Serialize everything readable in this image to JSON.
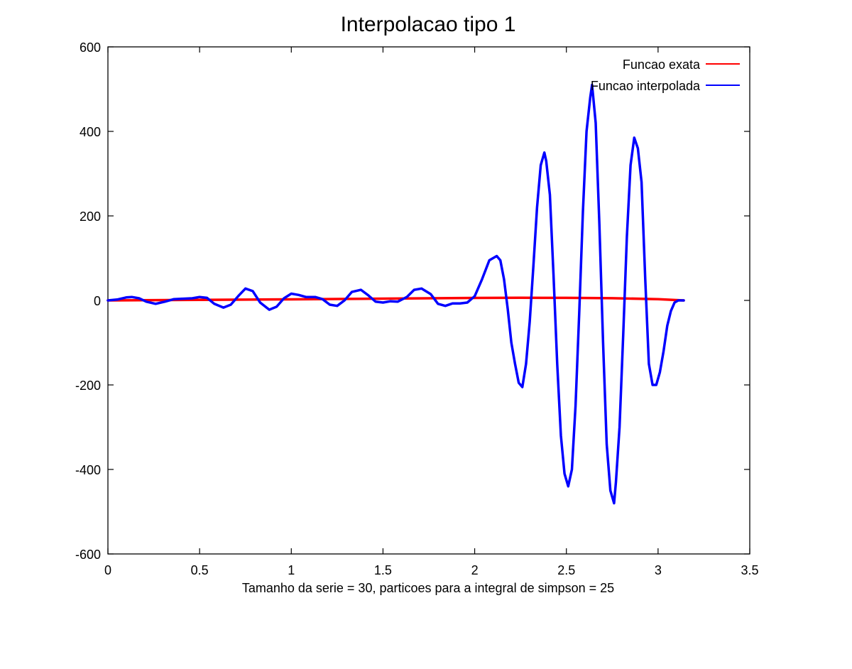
{
  "chart_data": {
    "type": "line",
    "title": "Interpolacao tipo 1",
    "xlabel": "Tamanho da serie = 30, particoes para a integral de simpson = 25",
    "ylabel": "",
    "xlim": [
      0,
      3.5
    ],
    "ylim": [
      -600,
      600
    ],
    "xticks": [
      0,
      0.5,
      1,
      1.5,
      2,
      2.5,
      3,
      3.5
    ],
    "xtick_labels": [
      "0",
      "0.5",
      "1",
      "1.5",
      "2",
      "2.5",
      "3",
      "3.5"
    ],
    "yticks": [
      600,
      400,
      200,
      0,
      -200,
      -400,
      -600
    ],
    "ytick_labels": [
      "600",
      "400",
      "200",
      "0",
      "-200",
      "-400",
      "-600"
    ],
    "grid": false,
    "legend_position": "top-right",
    "series": [
      {
        "name": "Funcao exata",
        "color": "#ff0000",
        "x": [
          0,
          0.25,
          0.5,
          0.75,
          1.0,
          1.25,
          1.5,
          1.75,
          2.0,
          2.25,
          2.5,
          2.75,
          3.0,
          3.14
        ],
        "y": [
          0,
          0.6,
          1.2,
          1.9,
          2.6,
          3.3,
          4.2,
          5.0,
          5.8,
          6.2,
          6.0,
          5.2,
          3.0,
          0
        ]
      },
      {
        "name": "Funcao interpolada",
        "color": "#0000ff",
        "x": [
          0,
          0.05,
          0.1,
          0.13,
          0.17,
          0.21,
          0.26,
          0.31,
          0.36,
          0.41,
          0.46,
          0.5,
          0.54,
          0.58,
          0.63,
          0.67,
          0.71,
          0.75,
          0.79,
          0.83,
          0.88,
          0.92,
          0.96,
          1.0,
          1.04,
          1.08,
          1.13,
          1.17,
          1.21,
          1.25,
          1.29,
          1.33,
          1.38,
          1.42,
          1.46,
          1.5,
          1.54,
          1.58,
          1.63,
          1.67,
          1.71,
          1.76,
          1.8,
          1.84,
          1.88,
          1.92,
          1.96,
          2.0,
          2.04,
          2.08,
          2.12,
          2.14,
          2.16,
          2.18,
          2.2,
          2.22,
          2.24,
          2.26,
          2.28,
          2.3,
          2.32,
          2.34,
          2.36,
          2.38,
          2.39,
          2.41,
          2.43,
          2.45,
          2.47,
          2.49,
          2.51,
          2.53,
          2.55,
          2.57,
          2.59,
          2.61,
          2.63,
          2.64,
          2.66,
          2.68,
          2.7,
          2.72,
          2.74,
          2.76,
          2.77,
          2.79,
          2.81,
          2.83,
          2.85,
          2.87,
          2.89,
          2.91,
          2.93,
          2.95,
          2.97,
          2.99,
          3.01,
          3.03,
          3.05,
          3.07,
          3.09,
          3.11,
          3.13,
          3.14
        ],
        "y": [
          0,
          2,
          7,
          8,
          5,
          -3,
          -8,
          -3,
          3,
          4,
          5,
          8,
          6,
          -8,
          -17,
          -10,
          10,
          28,
          22,
          -5,
          -22,
          -15,
          5,
          16,
          13,
          8,
          8,
          3,
          -10,
          -13,
          0,
          20,
          25,
          12,
          -3,
          -5,
          -2,
          -3,
          8,
          25,
          28,
          15,
          -8,
          -13,
          -7,
          -7,
          -5,
          10,
          50,
          95,
          105,
          95,
          50,
          -20,
          -100,
          -150,
          -195,
          -205,
          -150,
          -50,
          80,
          220,
          320,
          350,
          330,
          250,
          60,
          -150,
          -320,
          -410,
          -440,
          -400,
          -250,
          -30,
          210,
          400,
          480,
          510,
          420,
          180,
          -100,
          -340,
          -450,
          -480,
          -430,
          -300,
          -80,
          150,
          320,
          385,
          360,
          280,
          50,
          -150,
          -200,
          -200,
          -170,
          -120,
          -60,
          -25,
          -5,
          0,
          0,
          0
        ]
      }
    ]
  }
}
